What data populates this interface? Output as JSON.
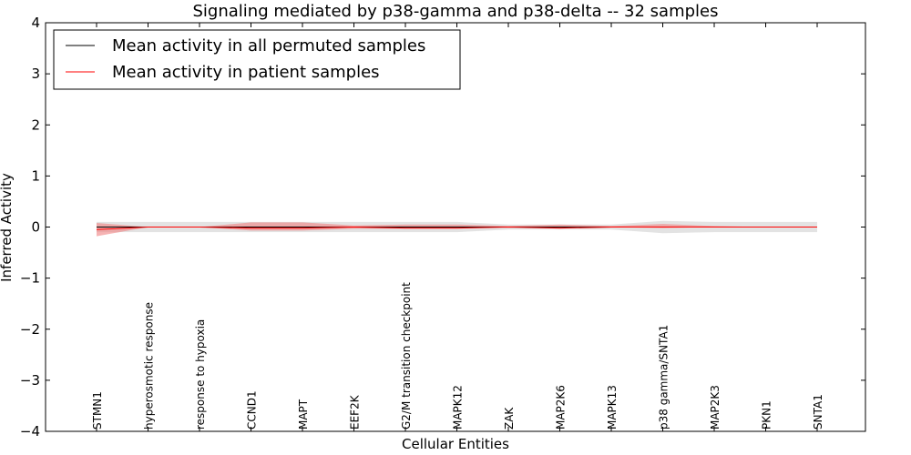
{
  "chart_data": {
    "type": "line",
    "title": "Signaling mediated by p38-gamma and p38-delta -- 32 samples",
    "xlabel": "Cellular Entities",
    "ylabel": "Inferred Activity",
    "ylim": [
      -4,
      4
    ],
    "yticks": [
      "4",
      "3",
      "2",
      "1",
      "0",
      "−1",
      "−2",
      "−3",
      "−4"
    ],
    "ytick_values": [
      4,
      3,
      2,
      1,
      0,
      -1,
      -2,
      -3,
      -4
    ],
    "categories": [
      "STMN1",
      "hyperosmotic response",
      "response to hypoxia",
      "CCND1",
      "MAPT",
      "EEF2K",
      "G2/M transition checkpoint",
      "MAPK12",
      "ZAK",
      "MAP2K6",
      "MAPK13",
      "p38 gamma/SNTA1",
      "MAP2K3",
      "PKN1",
      "SNTA1"
    ],
    "legend": {
      "location": "top-left"
    },
    "series": [
      {
        "name": "Mean activity in all permuted samples",
        "color": "#000000",
        "band_color": "#c8c8c8",
        "values": [
          0.0,
          0.0,
          0.0,
          0.0,
          0.0,
          0.0,
          0.0,
          0.0,
          0.0,
          0.0,
          0.0,
          0.0,
          0.0,
          0.0,
          0.0
        ],
        "lower": [
          -0.1,
          -0.1,
          -0.1,
          -0.1,
          -0.1,
          -0.1,
          -0.1,
          -0.1,
          -0.05,
          -0.05,
          -0.05,
          -0.12,
          -0.1,
          -0.1,
          -0.1
        ],
        "upper": [
          0.1,
          0.1,
          0.1,
          0.1,
          0.1,
          0.1,
          0.1,
          0.1,
          0.05,
          0.05,
          0.05,
          0.12,
          0.1,
          0.1,
          0.1
        ]
      },
      {
        "name": "Mean activity in patient samples",
        "color": "#ff0000",
        "band_color": "#f08080",
        "values": [
          -0.05,
          0.0,
          0.0,
          -0.02,
          -0.02,
          0.0,
          -0.02,
          -0.02,
          0.0,
          -0.02,
          0.0,
          0.0,
          0.0,
          0.0,
          0.0
        ],
        "lower": [
          -0.18,
          0.0,
          0.0,
          -0.07,
          -0.07,
          -0.03,
          -0.03,
          -0.03,
          0.0,
          -0.03,
          0.0,
          -0.02,
          0.0,
          0.0,
          0.0
        ],
        "upper": [
          0.08,
          0.0,
          0.0,
          0.09,
          0.09,
          0.03,
          0.05,
          0.05,
          0.02,
          0.05,
          0.02,
          0.06,
          0.02,
          0.0,
          0.0
        ]
      }
    ]
  }
}
